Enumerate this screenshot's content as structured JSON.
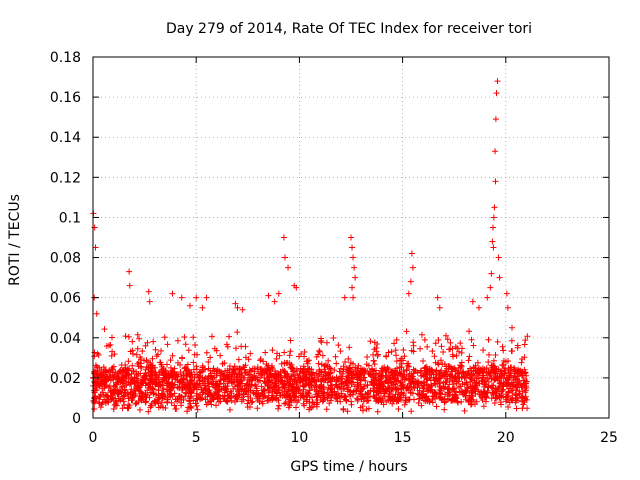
{
  "chart_data": {
    "type": "scatter",
    "title": "Day 279 of 2014, Rate Of TEC Index for receiver tori",
    "xlabel": "GPS time / hours",
    "ylabel": "ROTI / TECUs",
    "xlim": [
      0,
      25
    ],
    "ylim": [
      0,
      0.18
    ],
    "xticks": [
      0,
      5,
      10,
      15,
      20,
      25
    ],
    "yticks": [
      0,
      0.02,
      0.04,
      0.06,
      0.08,
      0.1,
      0.12,
      0.14,
      0.16,
      0.18
    ],
    "xtick_labels": [
      "0",
      "5",
      "10",
      "15",
      "20",
      "25"
    ],
    "ytick_labels": [
      "0",
      "0.02",
      "0.04",
      "0.06",
      "0.08",
      "0.1",
      "0.12",
      "0.14",
      "0.16",
      "0.18"
    ],
    "grid": true,
    "marker": "+",
    "color": "#ff0000",
    "baseline_range": [
      0.008,
      0.025
    ],
    "series": [
      {
        "x": [
          0.0,
          0.05,
          0.1,
          0.15,
          0.2,
          0.25,
          0.3,
          0.4,
          0.5,
          0.6,
          0.8,
          1.0,
          1.2,
          1.4,
          1.5,
          1.6,
          1.7,
          1.8,
          2.0,
          2.2,
          2.4,
          2.6,
          2.7,
          2.8,
          2.9,
          3.0,
          3.2,
          3.4,
          3.6,
          3.8,
          4.0,
          4.2,
          4.4,
          4.6,
          4.8,
          5.0,
          5.2,
          5.4,
          5.6,
          5.8,
          6.0,
          6.2,
          6.5,
          6.8,
          7.0,
          7.2,
          7.5,
          7.8,
          8.0,
          8.3,
          8.6,
          8.9,
          9.1,
          9.2,
          9.3,
          9.4,
          9.6,
          9.8,
          10.0,
          10.3,
          10.6,
          10.9,
          11.2,
          11.5,
          11.8,
          12.1,
          12.3,
          12.5,
          12.6,
          12.7,
          12.9,
          13.1,
          13.4,
          13.7,
          14.0,
          14.3,
          14.6,
          14.9,
          15.1,
          15.2,
          15.3,
          15.4,
          15.6,
          15.9,
          16.2,
          16.5,
          16.8,
          17.1,
          17.4,
          17.7,
          18.0,
          18.3,
          18.6,
          18.9,
          19.1,
          19.2,
          19.3,
          19.35,
          19.4,
          19.45,
          19.5,
          19.55,
          19.6,
          19.7,
          19.8,
          19.9,
          20.0,
          20.2,
          20.4,
          20.6,
          20.8,
          21.0,
          0.02,
          0.08,
          0.12,
          0.06,
          0.18,
          1.75,
          1.78,
          2.7,
          2.75,
          3.85,
          4.3,
          4.7,
          5.0,
          5.3,
          5.5,
          6.9,
          7.0,
          7.25,
          8.5,
          8.8,
          9.0,
          9.25,
          9.3,
          9.45,
          9.75,
          9.85,
          12.5,
          12.55,
          12.6,
          12.65,
          12.7,
          12.55,
          12.6,
          12.2,
          15.45,
          15.5,
          15.4,
          15.3,
          16.7,
          16.8,
          18.4,
          18.7,
          19.1,
          19.25,
          19.3,
          19.4,
          19.42,
          19.45,
          19.5,
          19.48,
          19.52,
          19.55,
          19.6,
          19.38,
          19.35,
          19.65,
          19.7,
          20.05,
          20.1,
          20.3
        ],
        "y": [
          0.02,
          0.018,
          0.022,
          0.015,
          0.025,
          0.019,
          0.021,
          0.017,
          0.023,
          0.018,
          0.02,
          0.016,
          0.022,
          0.019,
          0.024,
          0.021,
          0.018,
          0.02,
          0.017,
          0.022,
          0.019,
          0.021,
          0.025,
          0.023,
          0.02,
          0.018,
          0.016,
          0.019,
          0.021,
          0.017,
          0.02,
          0.018,
          0.022,
          0.016,
          0.019,
          0.017,
          0.021,
          0.015,
          0.018,
          0.02,
          0.017,
          0.019,
          0.021,
          0.018,
          0.02,
          0.022,
          0.019,
          0.021,
          0.018,
          0.02,
          0.022,
          0.019,
          0.021,
          0.024,
          0.02,
          0.018,
          0.021,
          0.019,
          0.022,
          0.02,
          0.018,
          0.021,
          0.023,
          0.02,
          0.019,
          0.022,
          0.025,
          0.023,
          0.027,
          0.024,
          0.021,
          0.02,
          0.022,
          0.019,
          0.021,
          0.018,
          0.02,
          0.022,
          0.019,
          0.024,
          0.021,
          0.02,
          0.018,
          0.021,
          0.019,
          0.02,
          0.018,
          0.021,
          0.019,
          0.022,
          0.02,
          0.018,
          0.021,
          0.023,
          0.02,
          0.022,
          0.025,
          0.024,
          0.026,
          0.023,
          0.022,
          0.024,
          0.021,
          0.019,
          0.022,
          0.02,
          0.018,
          0.021,
          0.019,
          0.017,
          0.016,
          0.015,
          0.102,
          0.095,
          0.085,
          0.06,
          0.052,
          0.073,
          0.066,
          0.063,
          0.058,
          0.062,
          0.06,
          0.056,
          0.06,
          0.055,
          0.06,
          0.057,
          0.055,
          0.054,
          0.061,
          0.058,
          0.062,
          0.09,
          0.08,
          0.075,
          0.066,
          0.065,
          0.09,
          0.085,
          0.08,
          0.075,
          0.07,
          0.065,
          0.06,
          0.06,
          0.082,
          0.075,
          0.068,
          0.062,
          0.06,
          0.055,
          0.058,
          0.055,
          0.06,
          0.065,
          0.072,
          0.085,
          0.1,
          0.105,
          0.118,
          0.133,
          0.149,
          0.162,
          0.168,
          0.095,
          0.088,
          0.08,
          0.07,
          0.062,
          0.055,
          0.045
        ]
      }
    ]
  }
}
